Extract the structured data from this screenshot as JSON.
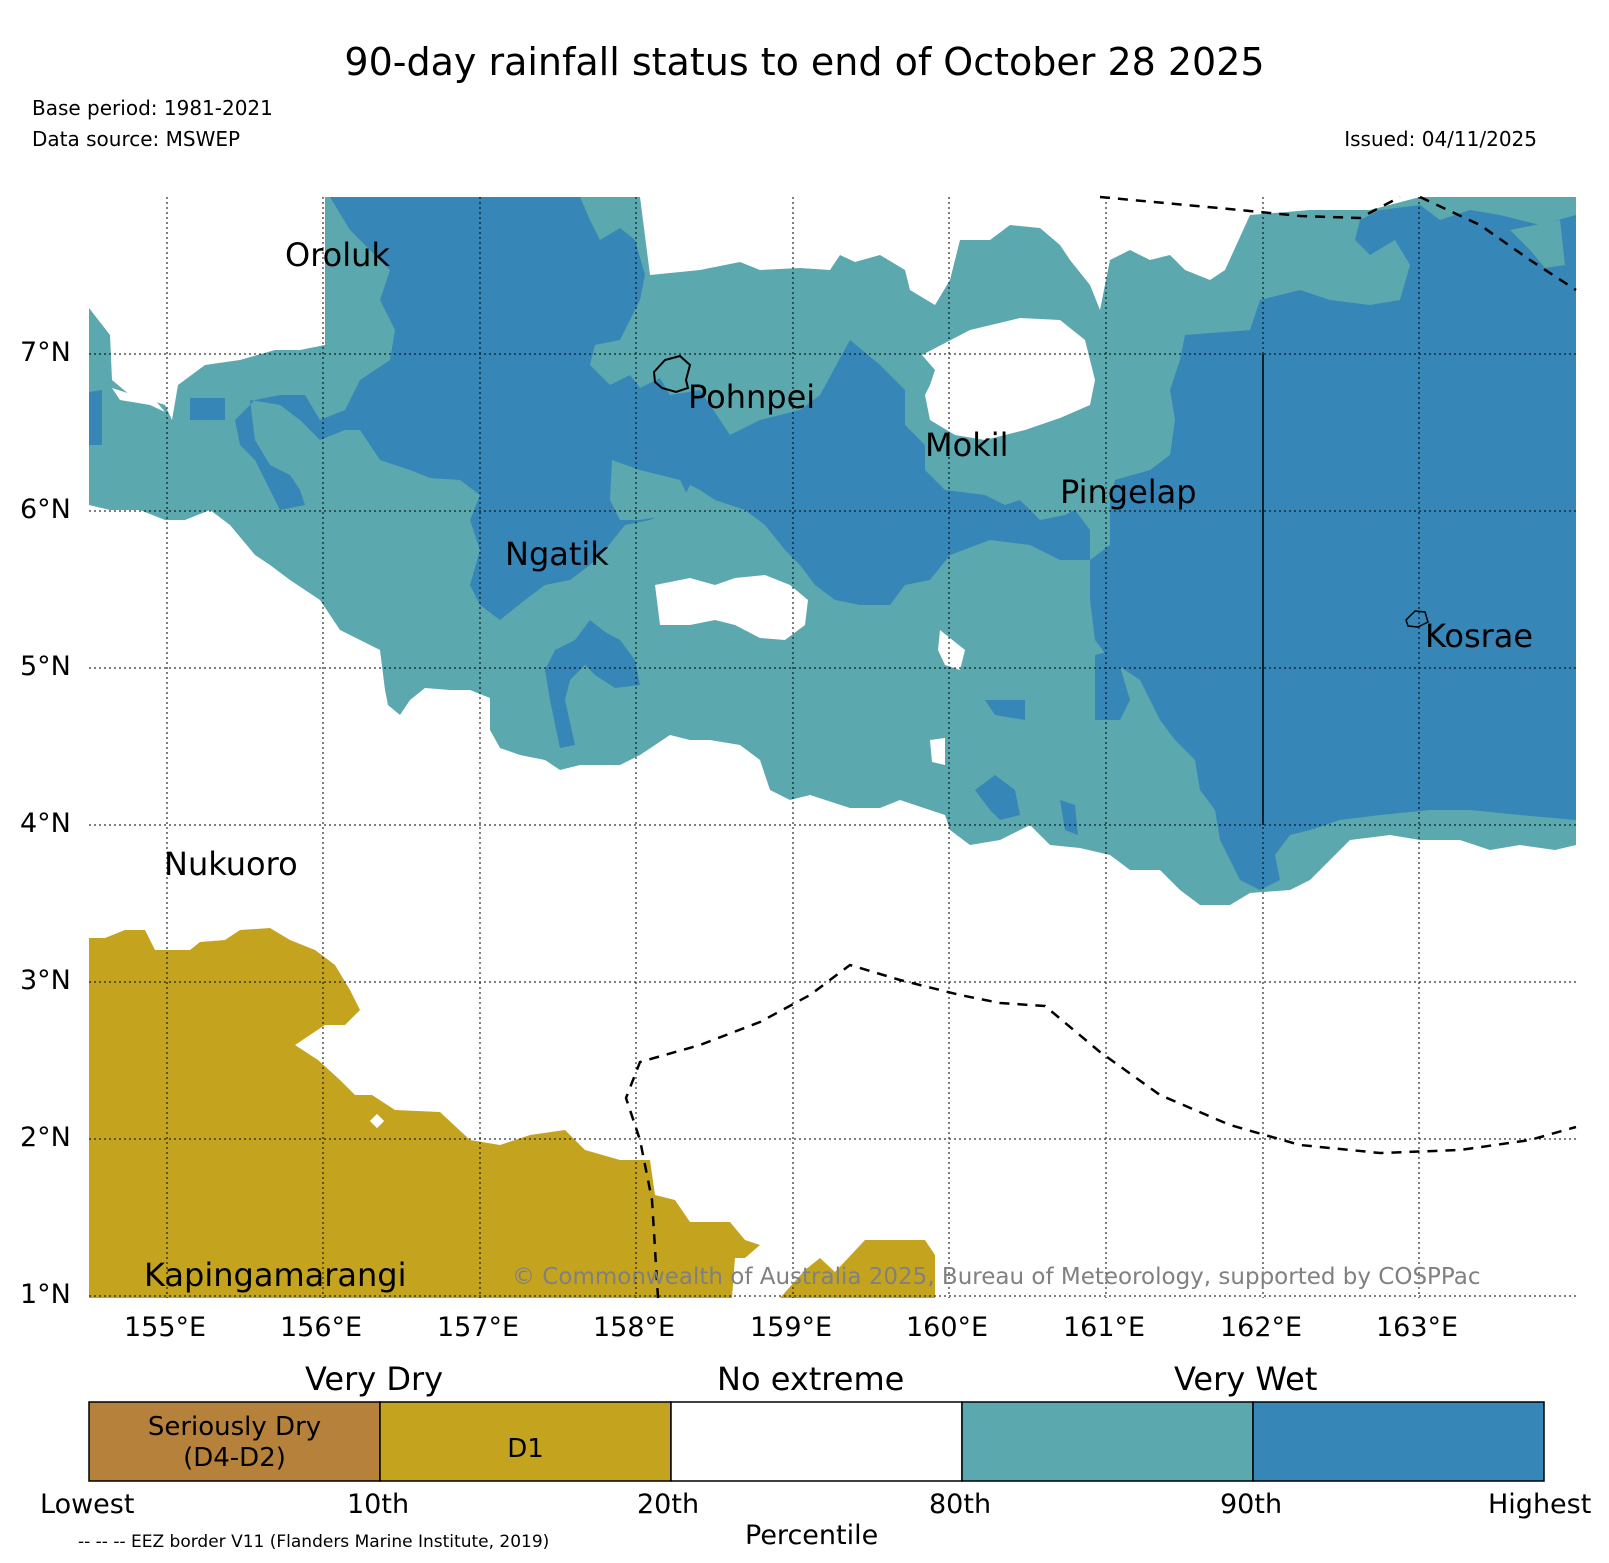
{
  "header": {
    "title": "90-day rainfall status to end of October 28 2025",
    "base_period": "Base period: 1981-2021",
    "data_source": "Data source: MSWEP",
    "issued": "Issued: 04/11/2025"
  },
  "map": {
    "lat_labels": [
      "7°N",
      "6°N",
      "5°N",
      "4°N",
      "3°N",
      "2°N",
      "1°N"
    ],
    "lon_labels": [
      "155°E",
      "156°E",
      "157°E",
      "158°E",
      "159°E",
      "160°E",
      "161°E",
      "162°E",
      "163°E"
    ],
    "places": [
      "Oroluk",
      "Pohnpei",
      "Mokil",
      "Pingelap",
      "Ngatik",
      "Kosrae",
      "Nukuoro",
      "Kapingamarangi"
    ],
    "copyright": "© Commonwealth of Australia 2025, Bureau of Meteorology, supported by COSPPac"
  },
  "legend": {
    "groups": [
      "Very Dry",
      "No extreme",
      "Very Wet"
    ],
    "boxes": [
      {
        "label1": "Seriously Dry",
        "label2": "(D4-D2)",
        "color": "#b5813b"
      },
      {
        "label1": "",
        "label2": "D1",
        "color": "#c4a41e"
      },
      {
        "label1": "",
        "label2": "",
        "color": "#ffffff"
      },
      {
        "label1": "",
        "label2": "",
        "color": "#5ca8af"
      },
      {
        "label1": "",
        "label2": "",
        "color": "#3686b8"
      }
    ],
    "ticks": [
      "Lowest",
      "10th",
      "20th",
      "80th",
      "90th",
      "Highest"
    ],
    "axis_label": "Percentile",
    "eez_note": "-- -- -- EEZ border V11 (Flanders Marine Institute, 2019)"
  },
  "colors": {
    "dry_severe": "#b5813b",
    "dry_d1": "#c4a41e",
    "wet_80": "#5ca8af",
    "wet_90": "#3686b8"
  }
}
